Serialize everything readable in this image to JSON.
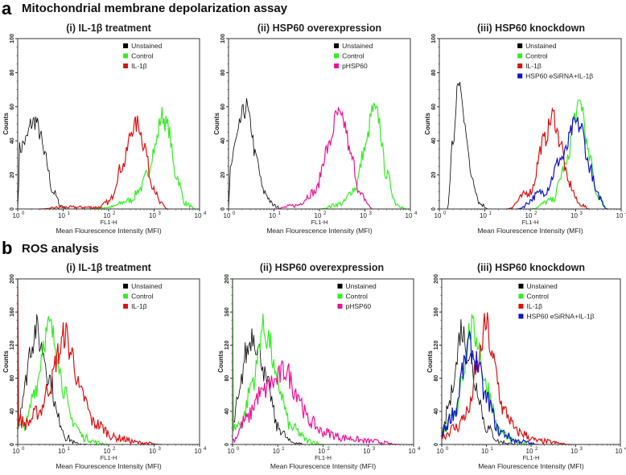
{
  "sections": [
    {
      "letter": "a",
      "title": "Mitochondrial membrane depolarization assay"
    },
    {
      "letter": "b",
      "title": "ROS analysis"
    }
  ],
  "colors": {
    "Unstained": "#000000",
    "Control": "#33ee22",
    "IL-1β": "#dd1111",
    "pHSP60": "#ee1199",
    "HSP60 eSiRNA+IL-1β": "#1111cc"
  },
  "chart_data": [
    {
      "type": "line",
      "section": "a",
      "title": "(i) IL-1β treatment",
      "xlabel": "FL1-H",
      "xlabel2": "Mean Flourescence Intensity (MFI)",
      "ylabel": "Counts",
      "xscale": "log",
      "xlim": [
        1,
        10000
      ],
      "xticks": [
        "0",
        "1",
        "2",
        "3",
        "4"
      ],
      "ylim": [
        0,
        100
      ],
      "yticks": [
        "0",
        "20",
        "40",
        "60",
        "80",
        "100"
      ],
      "legend": "top-right",
      "series": [
        {
          "name": "Unstained",
          "points": [
            [
              1,
              0
            ],
            [
              1.1,
              35
            ],
            [
              1.5,
              40
            ],
            [
              2,
              50
            ],
            [
              2.5,
              52
            ],
            [
              3,
              45
            ],
            [
              4,
              30
            ],
            [
              6,
              10
            ],
            [
              9,
              2
            ],
            [
              12,
              0
            ]
          ]
        },
        {
          "name": "Control",
          "points": [
            [
              30,
              0
            ],
            [
              100,
              1
            ],
            [
              300,
              5
            ],
            [
              500,
              12
            ],
            [
              700,
              20
            ],
            [
              1000,
              35
            ],
            [
              1500,
              55
            ],
            [
              2000,
              48
            ],
            [
              3000,
              20
            ],
            [
              5000,
              3
            ],
            [
              8000,
              0
            ]
          ]
        },
        {
          "name": "IL-1β",
          "points": [
            [
              3,
              0
            ],
            [
              10,
              1
            ],
            [
              60,
              1
            ],
            [
              100,
              4
            ],
            [
              200,
              25
            ],
            [
              350,
              48
            ],
            [
              450,
              50
            ],
            [
              600,
              38
            ],
            [
              900,
              15
            ],
            [
              1400,
              3
            ],
            [
              2000,
              0
            ]
          ]
        }
      ]
    },
    {
      "type": "line",
      "section": "a",
      "title": "(ii) HSP60 overexpression",
      "xlabel": "FL1-H",
      "xlabel2": "Mean Flourescence Intensity (MFI)",
      "ylabel": "Counts",
      "xscale": "log",
      "xlim": [
        1,
        10000
      ],
      "xticks": [
        "0",
        "1",
        "2",
        "3",
        "4"
      ],
      "ylim": [
        0,
        100
      ],
      "yticks": [
        "0",
        "20",
        "40",
        "60",
        "80",
        "100"
      ],
      "legend": "top-right",
      "series": [
        {
          "name": "Unstained",
          "points": [
            [
              1,
              0
            ],
            [
              1.1,
              25
            ],
            [
              1.5,
              40
            ],
            [
              2,
              55
            ],
            [
              2.5,
              60
            ],
            [
              3,
              50
            ],
            [
              4,
              30
            ],
            [
              6,
              10
            ],
            [
              10,
              2
            ],
            [
              15,
              0
            ]
          ]
        },
        {
          "name": "Control",
          "points": [
            [
              100,
              0
            ],
            [
              300,
              3
            ],
            [
              600,
              12
            ],
            [
              1000,
              35
            ],
            [
              1500,
              58
            ],
            [
              1900,
              55
            ],
            [
              3000,
              20
            ],
            [
              5000,
              3
            ],
            [
              8000,
              0
            ]
          ]
        },
        {
          "name": "pHSP60",
          "points": [
            [
              10,
              0
            ],
            [
              30,
              2
            ],
            [
              80,
              10
            ],
            [
              150,
              35
            ],
            [
              250,
              55
            ],
            [
              350,
              50
            ],
            [
              500,
              30
            ],
            [
              800,
              8
            ],
            [
              1500,
              0
            ]
          ]
        }
      ]
    },
    {
      "type": "line",
      "section": "a",
      "title": "(iii) HSP60 knockdown",
      "xlabel": "FL1-H",
      "xlabel2": "Mean Flourescence Intensity (MFI)",
      "ylabel": "Counts",
      "xscale": "log",
      "xlim": [
        1,
        10000
      ],
      "xticks": [
        "0",
        "1",
        "2",
        "3",
        "4"
      ],
      "ylim": [
        0,
        100
      ],
      "yticks": [
        "0",
        "20",
        "40",
        "60",
        "80",
        "100"
      ],
      "legend": "top-right",
      "series": [
        {
          "name": "Unstained",
          "points": [
            [
              1.5,
              0
            ],
            [
              2,
              40
            ],
            [
              2.7,
              75
            ],
            [
              3.5,
              55
            ],
            [
              5,
              20
            ],
            [
              8,
              3
            ],
            [
              12,
              0
            ]
          ]
        },
        {
          "name": "Control",
          "points": [
            [
              100,
              0
            ],
            [
              300,
              5
            ],
            [
              600,
              25
            ],
            [
              1000,
              55
            ],
            [
              1300,
              62
            ],
            [
              2000,
              30
            ],
            [
              3000,
              8
            ],
            [
              5000,
              0
            ]
          ]
        },
        {
          "name": "IL-1β",
          "points": [
            [
              30,
              0
            ],
            [
              100,
              10
            ],
            [
              200,
              40
            ],
            [
              320,
              55
            ],
            [
              450,
              40
            ],
            [
              700,
              15
            ],
            [
              1200,
              3
            ],
            [
              2000,
              0
            ]
          ]
        },
        {
          "name": "HSP60 eSiRNA+IL-1β",
          "points": [
            [
              50,
              0
            ],
            [
              200,
              10
            ],
            [
              500,
              30
            ],
            [
              1000,
              50
            ],
            [
              1300,
              48
            ],
            [
              2000,
              25
            ],
            [
              3000,
              8
            ],
            [
              5000,
              0
            ]
          ]
        }
      ]
    },
    {
      "type": "line",
      "section": "b",
      "title": "(i) IL-1β treatment",
      "xlabel": "FL1-H",
      "xlabel2": "Mean Flourescence Intensity (MFI)",
      "ylabel": "Counts",
      "xscale": "log",
      "xlim": [
        1,
        10000
      ],
      "xticks": [
        "0",
        "1",
        "2",
        "3",
        "4"
      ],
      "ylim": [
        0,
        200
      ],
      "yticks": [
        "0",
        "40",
        "80",
        "120",
        "160",
        "200"
      ],
      "legend": "top-right",
      "series": [
        {
          "name": "Unstained",
          "points": [
            [
              1,
              20
            ],
            [
              1.3,
              60
            ],
            [
              2,
              120
            ],
            [
              2.5,
              140
            ],
            [
              3.5,
              115
            ],
            [
              5,
              80
            ],
            [
              8,
              30
            ],
            [
              12,
              8
            ],
            [
              20,
              1
            ],
            [
              40,
              0
            ]
          ]
        },
        {
          "name": "Control",
          "points": [
            [
              1,
              20
            ],
            [
              1.5,
              25
            ],
            [
              2.5,
              70
            ],
            [
              4,
              130
            ],
            [
              5,
              142
            ],
            [
              7,
              120
            ],
            [
              10,
              70
            ],
            [
              15,
              30
            ],
            [
              30,
              8
            ],
            [
              60,
              2
            ],
            [
              100,
              0
            ]
          ]
        },
        {
          "name": "IL-1β",
          "points": [
            [
              1,
              200
            ],
            [
              1.05,
              30
            ],
            [
              1.5,
              25
            ],
            [
              3,
              40
            ],
            [
              5,
              70
            ],
            [
              8,
              110
            ],
            [
              11,
              135
            ],
            [
              15,
              110
            ],
            [
              25,
              60
            ],
            [
              50,
              25
            ],
            [
              150,
              8
            ],
            [
              500,
              2
            ],
            [
              1500,
              0
            ]
          ]
        }
      ]
    },
    {
      "type": "line",
      "section": "b",
      "title": "(ii) HSP60 overexpression",
      "xlabel": "FL1-H",
      "xlabel2": "Mean Flourescence Intensity (MFI)",
      "ylabel": "Counts",
      "xscale": "log",
      "xlim": [
        1,
        10000
      ],
      "xticks": [
        "0",
        "1",
        "2",
        "3",
        "4"
      ],
      "ylim": [
        0,
        200
      ],
      "yticks": [
        "0",
        "40",
        "80",
        "120",
        "160",
        "200"
      ],
      "legend": "top-right",
      "series": [
        {
          "name": "Unstained",
          "points": [
            [
              1,
              20
            ],
            [
              1.3,
              50
            ],
            [
              2,
              110
            ],
            [
              2.8,
              135
            ],
            [
              4,
              110
            ],
            [
              6,
              70
            ],
            [
              10,
              20
            ],
            [
              20,
              3
            ],
            [
              40,
              0
            ]
          ]
        },
        {
          "name": "Control",
          "points": [
            [
              1,
              200
            ],
            [
              1.05,
              20
            ],
            [
              1.5,
              25
            ],
            [
              3,
              80
            ],
            [
              4.5,
              140
            ],
            [
              6,
              130
            ],
            [
              10,
              70
            ],
            [
              20,
              20
            ],
            [
              50,
              4
            ],
            [
              100,
              0
            ]
          ]
        },
        {
          "name": "pHSP60",
          "points": [
            [
              1,
              5
            ],
            [
              2,
              30
            ],
            [
              4,
              60
            ],
            [
              8,
              75
            ],
            [
              15,
              90
            ],
            [
              25,
              65
            ],
            [
              50,
              28
            ],
            [
              100,
              15
            ],
            [
              300,
              8
            ],
            [
              1000,
              4
            ],
            [
              5000,
              0
            ]
          ]
        }
      ]
    },
    {
      "type": "line",
      "section": "b",
      "title": "(iii) HSP60 knockdown",
      "xlabel": "FL1-H",
      "xlabel2": "Mean Flourescence Intensity (MFI)",
      "ylabel": "Counts",
      "xscale": "log",
      "xlim": [
        1,
        10000
      ],
      "xticks": [
        "0",
        "1",
        "2",
        "3",
        "4"
      ],
      "ylim": [
        0,
        200
      ],
      "yticks": [
        "0",
        "40",
        "80",
        "120",
        "160",
        "200"
      ],
      "legend": "top-right",
      "series": [
        {
          "name": "Unstained",
          "points": [
            [
              1,
              10
            ],
            [
              1.5,
              50
            ],
            [
              2,
              90
            ],
            [
              2.7,
              140
            ],
            [
              4,
              110
            ],
            [
              6,
              70
            ],
            [
              10,
              20
            ],
            [
              20,
              3
            ],
            [
              50,
              0
            ]
          ]
        },
        {
          "name": "Control",
          "points": [
            [
              1,
              15
            ],
            [
              2,
              35
            ],
            [
              3,
              90
            ],
            [
              4.5,
              140
            ],
            [
              6,
              130
            ],
            [
              10,
              70
            ],
            [
              20,
              15
            ],
            [
              50,
              2
            ],
            [
              100,
              0
            ]
          ]
        },
        {
          "name": "IL-1β",
          "points": [
            [
              1,
              10
            ],
            [
              2,
              20
            ],
            [
              4,
              40
            ],
            [
              6,
              90
            ],
            [
              10,
              145
            ],
            [
              14,
              100
            ],
            [
              25,
              40
            ],
            [
              50,
              15
            ],
            [
              150,
              4
            ],
            [
              800,
              0
            ]
          ]
        },
        {
          "name": "HSP60 eSiRNA+IL-1β",
          "points": [
            [
              1,
              15
            ],
            [
              2,
              40
            ],
            [
              3,
              90
            ],
            [
              4,
              120
            ],
            [
              6,
              100
            ],
            [
              10,
              55
            ],
            [
              20,
              15
            ],
            [
              50,
              4
            ],
            [
              150,
              0
            ]
          ]
        }
      ]
    }
  ]
}
